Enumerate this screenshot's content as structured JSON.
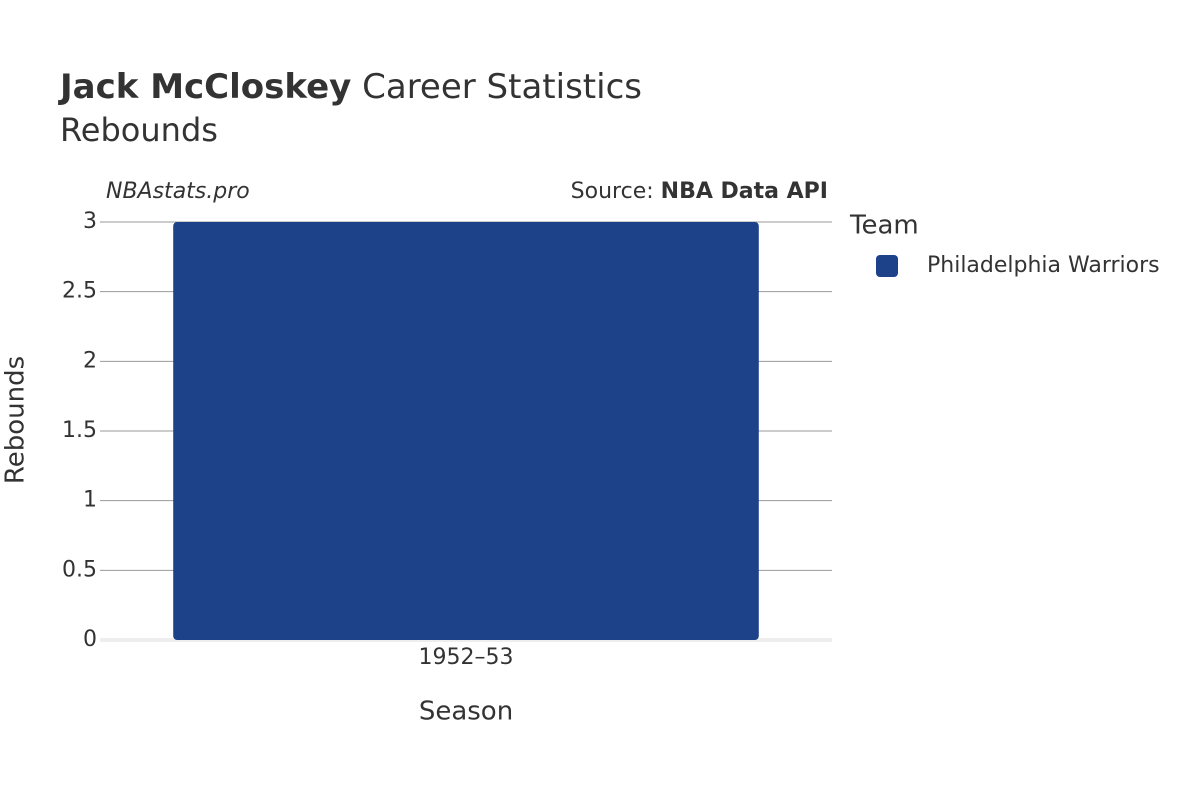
{
  "chart_data": {
    "type": "bar",
    "title_name": "Jack McCloskey",
    "title": "Career Statistics",
    "subtitle": "Rebounds",
    "watermark": "NBAstats.pro",
    "source_label": "Source:",
    "source": "NBA Data API",
    "x_label": "Season",
    "y_label": "Rebounds",
    "categories": [
      "1952–53"
    ],
    "series": [
      {
        "name": "Philadelphia Warriors",
        "color": "#1d428a",
        "values": [
          3
        ]
      }
    ],
    "legend_title": "Team",
    "legend": "right",
    "ylim": [
      0,
      3
    ],
    "yticks": [
      0,
      0.5,
      1,
      1.5,
      2,
      2.5,
      3
    ],
    "grid": true
  }
}
